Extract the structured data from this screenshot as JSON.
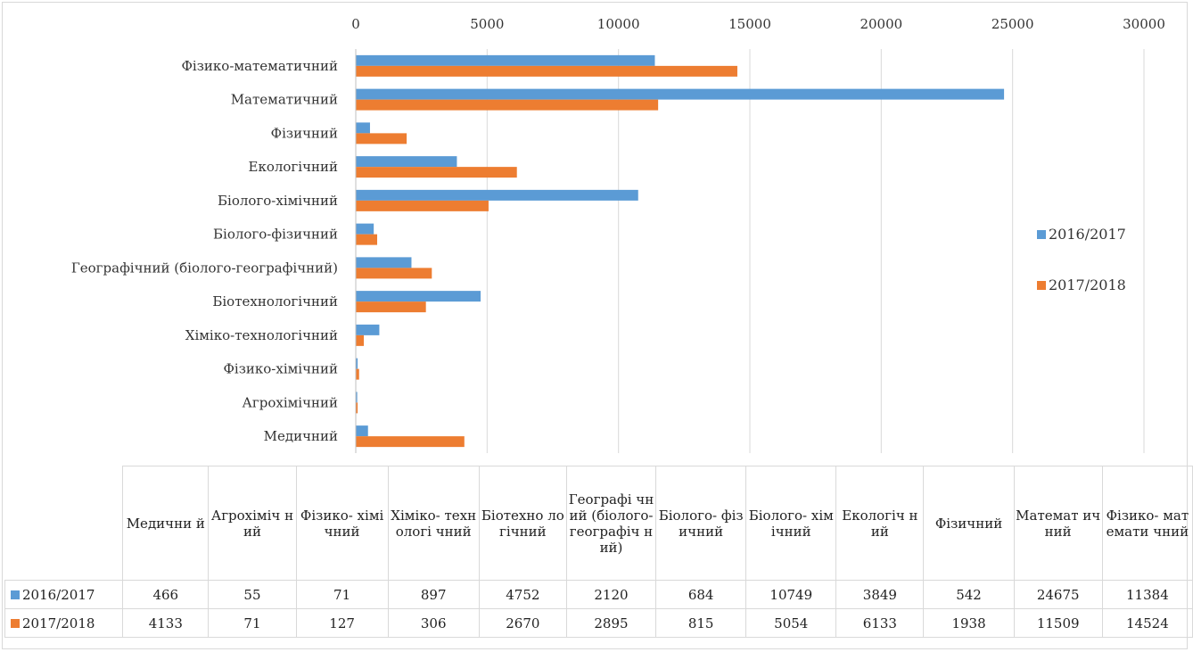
{
  "chart_data": {
    "type": "bar",
    "orientation": "horizontal",
    "categories": [
      "Фізико-математичний",
      "Математичний",
      "Фізичний",
      "Екологічний",
      "Біолого-хімічний",
      "Біолого-фізичний",
      "Географічний (біолого-географічний)",
      "Біотехнологічний",
      "Хіміко-технологічний",
      "Фізико-хімічний",
      "Агрохімічний",
      "Медичний"
    ],
    "series": [
      {
        "name": "2016/2017",
        "color": "#5b9bd5",
        "values": [
          11384,
          24675,
          542,
          3849,
          10749,
          684,
          2120,
          4752,
          897,
          71,
          55,
          466
        ]
      },
      {
        "name": "2017/2018",
        "color": "#ed7d31",
        "values": [
          14524,
          11509,
          1938,
          6133,
          5054,
          815,
          2895,
          2670,
          306,
          127,
          71,
          4133
        ]
      }
    ],
    "xlim": [
      0,
      30000
    ],
    "xticks": [
      0,
      5000,
      10000,
      15000,
      20000,
      25000,
      30000
    ],
    "grid": "vertical",
    "legend": "right",
    "xaxis_position": "top"
  },
  "table": {
    "columns": [
      "Медични й",
      "Агрохіміч ний",
      "Фізико- хімічний",
      "Хіміко- технологі чний",
      "Біотехно логічний",
      "Географі чний (біолого- географіч ний)",
      "Біолого- фізичний",
      "Біолого- хімічний",
      "Екологіч ний",
      "Фізичний",
      "Математ ичний",
      "Фізико- математи чний"
    ]
  }
}
